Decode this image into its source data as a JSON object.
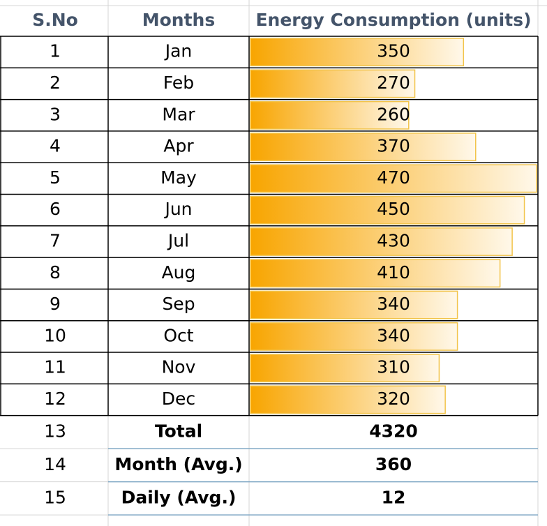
{
  "table": {
    "header": [
      "S.No",
      "Months",
      "Energy Consumption (units)"
    ],
    "rows": [
      [
        1,
        "Jan",
        350
      ],
      [
        2,
        "Feb",
        270
      ],
      [
        3,
        "Mar",
        260
      ],
      [
        4,
        "Apr",
        370
      ],
      [
        5,
        "May",
        470
      ],
      [
        6,
        "Jun",
        450
      ],
      [
        7,
        "Jul",
        430
      ],
      [
        8,
        "Aug",
        410
      ],
      [
        9,
        "Sep",
        340
      ],
      [
        10,
        "Oct",
        340
      ],
      [
        11,
        "Nov",
        310
      ],
      [
        12,
        "Dec",
        320
      ]
    ],
    "summary": [
      [
        13,
        "Total",
        4320
      ],
      [
        14,
        "Month (Avg.)",
        360
      ],
      [
        15,
        "Daily (Avg.)",
        12
      ]
    ]
  }
}
